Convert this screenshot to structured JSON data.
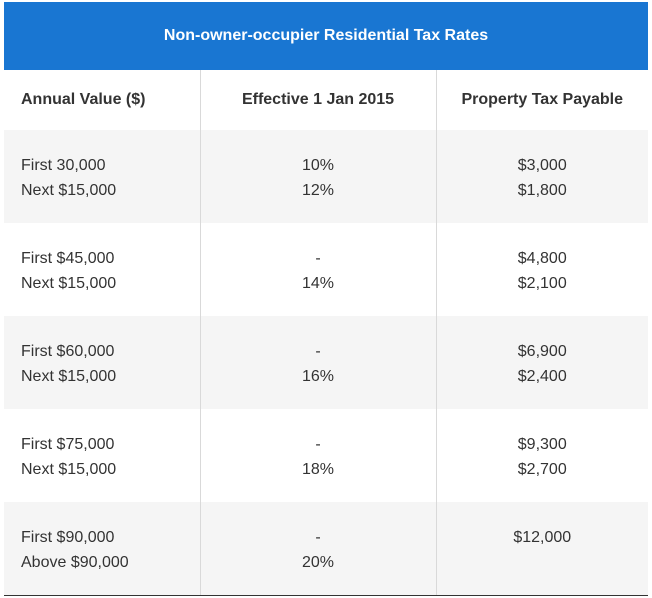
{
  "title": "Non-owner-occupier Residential Tax Rates",
  "headers": [
    "Annual Value ($)",
    "Effective 1 Jan 2015",
    "Property Tax Payable"
  ],
  "rows": [
    {
      "annual_value": [
        "First 30,000",
        "Next $15,000"
      ],
      "rate": [
        "10%",
        "12%"
      ],
      "tax": [
        "$3,000",
        "$1,800"
      ]
    },
    {
      "annual_value": [
        "First $45,000",
        "Next $15,000"
      ],
      "rate": [
        "-",
        "14%"
      ],
      "tax": [
        "$4,800",
        "$2,100"
      ]
    },
    {
      "annual_value": [
        "First $60,000",
        "Next $15,000"
      ],
      "rate": [
        "-",
        "16%"
      ],
      "tax": [
        "$6,900",
        "$2,400"
      ]
    },
    {
      "annual_value": [
        "First $75,000",
        "Next $15,000"
      ],
      "rate": [
        "-",
        "18%"
      ],
      "tax": [
        "$9,300",
        "$2,700"
      ]
    },
    {
      "annual_value": [
        "First $90,000",
        "Above $90,000"
      ],
      "rate": [
        "-",
        "20%"
      ],
      "tax": [
        "$12,000",
        ""
      ]
    }
  ]
}
